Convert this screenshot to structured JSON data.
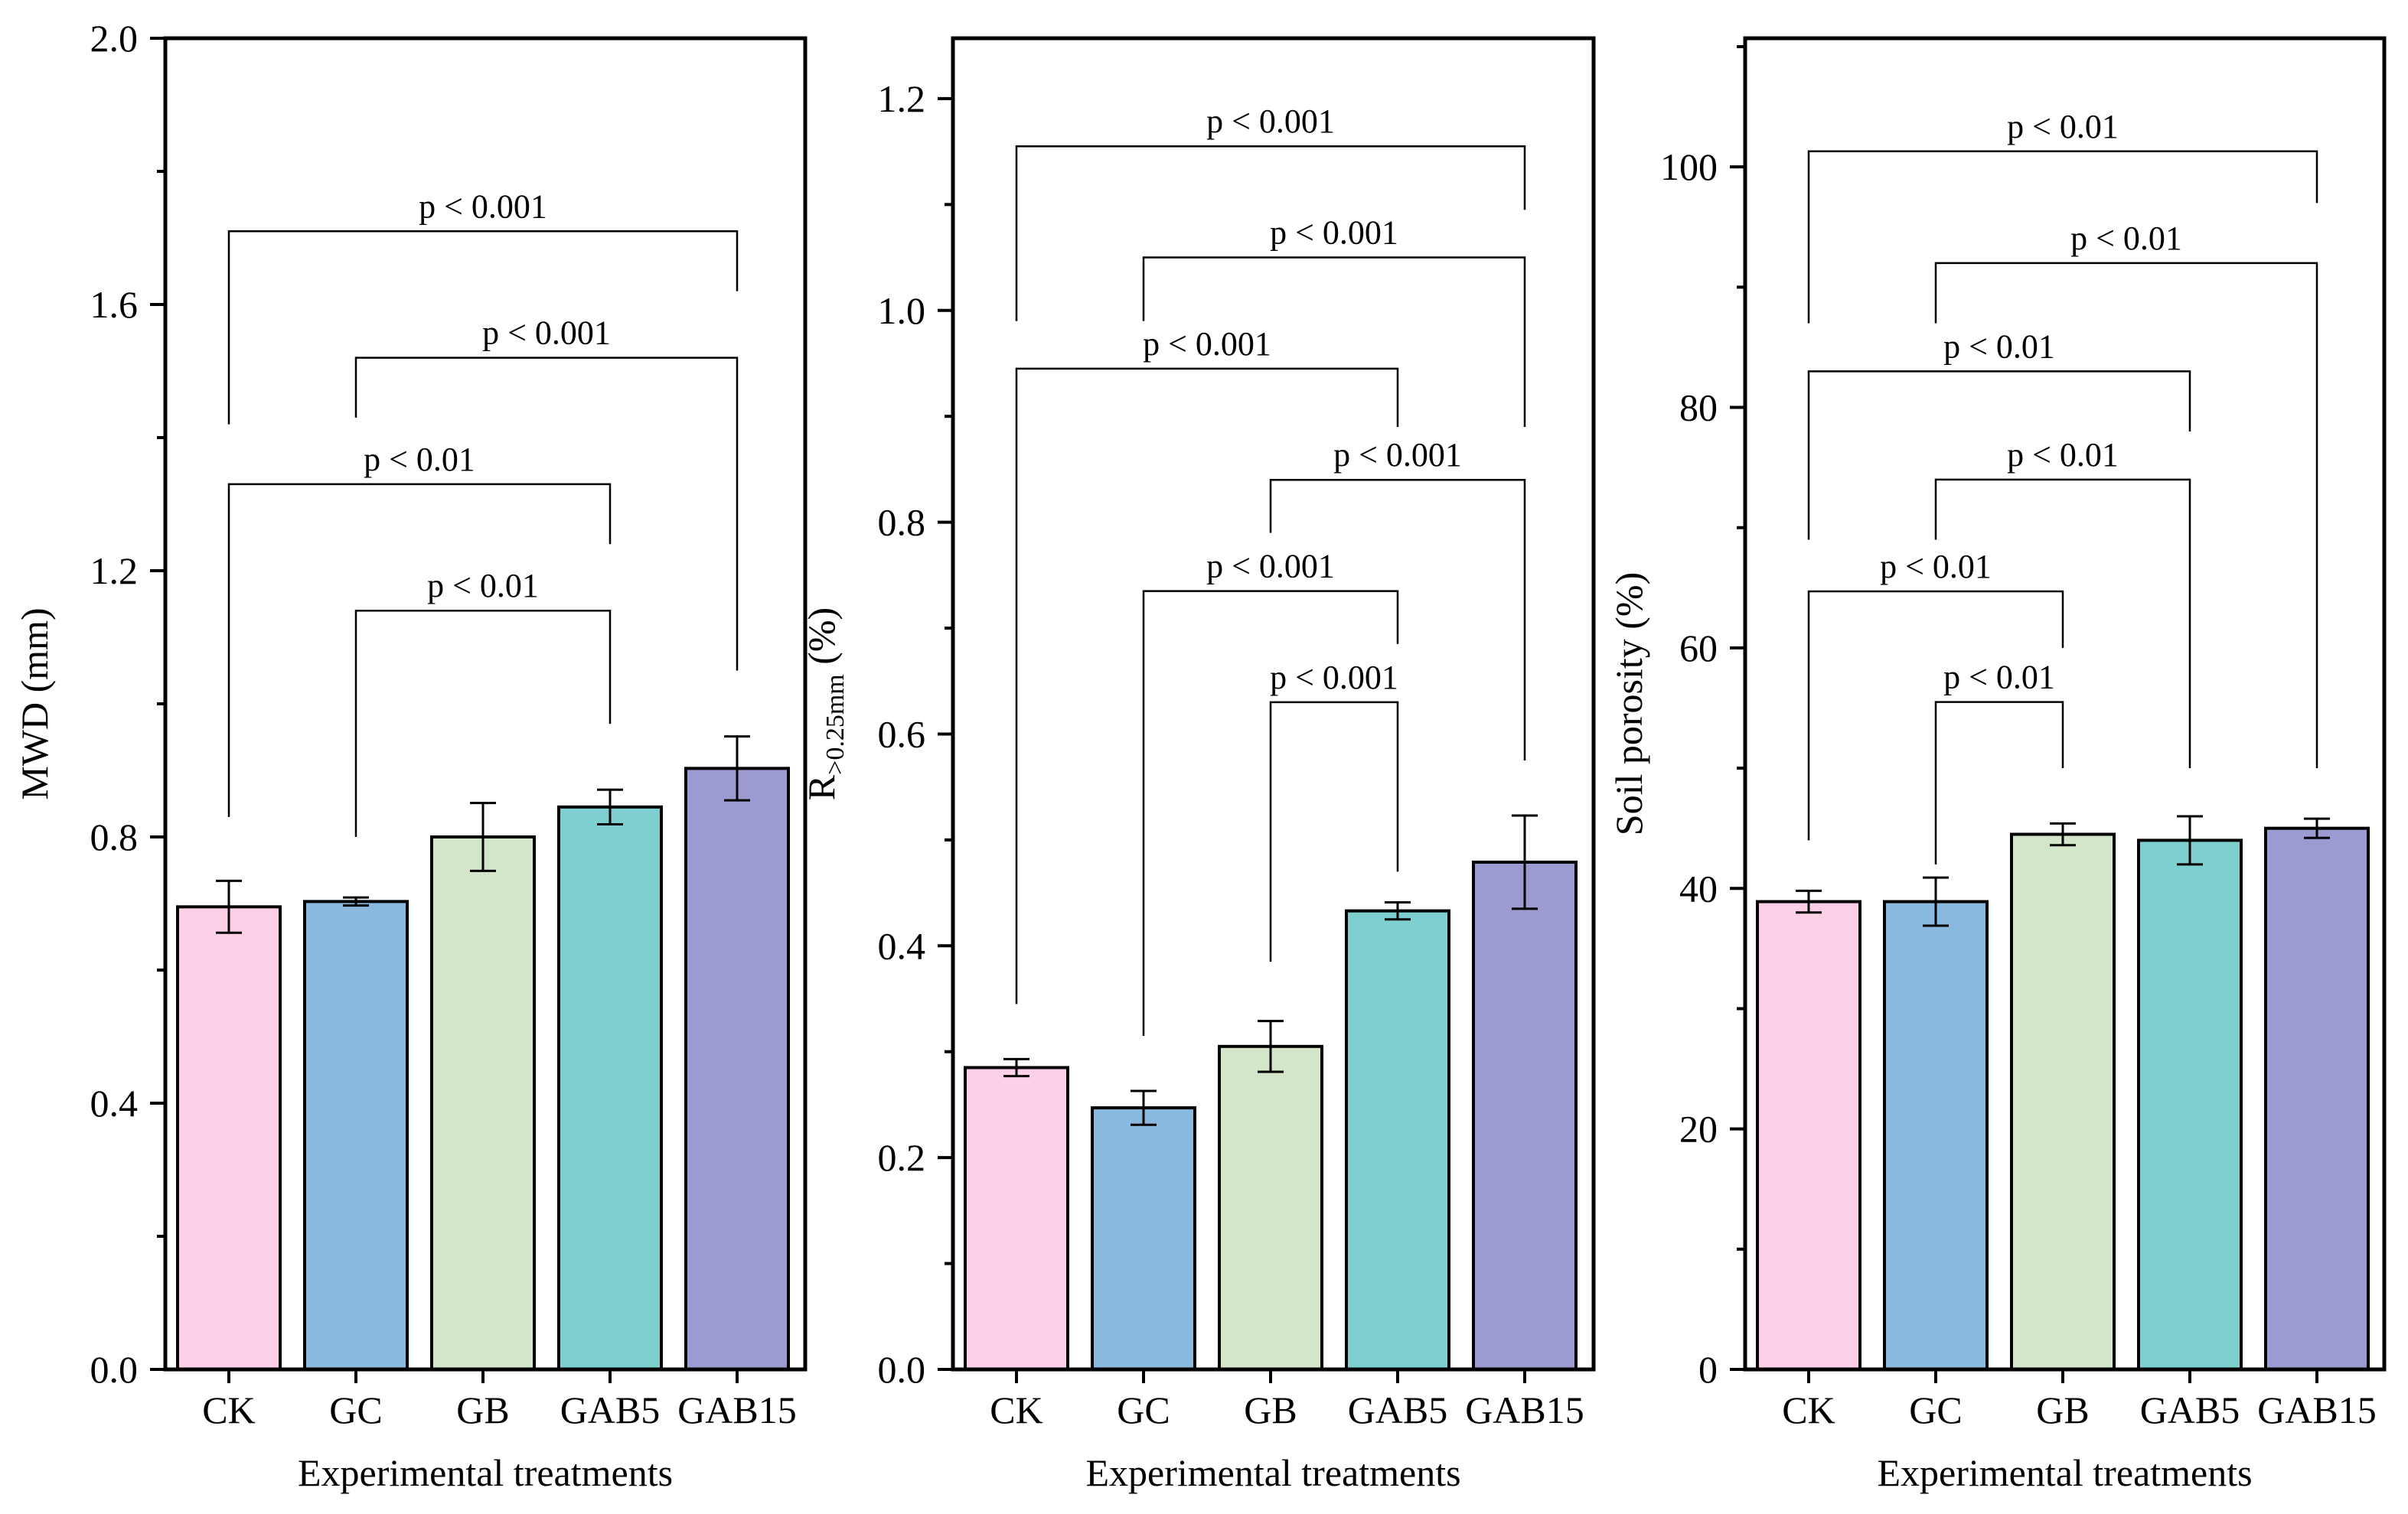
{
  "chart_data": [
    {
      "type": "bar",
      "title": "",
      "xlabel": "Experimental treatments",
      "ylabel": "MWD (mm)",
      "ylabel_parts": {
        "main": "MWD (mm)"
      },
      "categories": [
        "CK",
        "GC",
        "GB",
        "GAB5",
        "GAB15"
      ],
      "values": [
        0.695,
        0.703,
        0.8,
        0.845,
        0.903
      ],
      "errors": [
        0.039,
        0.006,
        0.051,
        0.026,
        0.048
      ],
      "colors": [
        "#FDD0E8",
        "#8AB9E0",
        "#D3E6CA",
        "#7ECFCF",
        "#9B9BD2"
      ],
      "ylim": [
        0,
        2.0
      ],
      "yticks": [
        0.0,
        0.4,
        0.8,
        1.2,
        1.6,
        2.0
      ],
      "ytick_labels": [
        "0.0",
        "0.4",
        "0.8",
        "1.2",
        "1.6",
        "2.0"
      ],
      "minor_step": 0.2,
      "significance": [
        {
          "from": 0,
          "to": 4,
          "level": 1.71,
          "drop_from": 1.42,
          "drop_to": 1.62,
          "label": "p < 0.001"
        },
        {
          "from": 1,
          "to": 4,
          "level": 1.52,
          "drop_from": 1.43,
          "drop_to": 1.05,
          "label": "p < 0.001"
        },
        {
          "from": 0,
          "to": 3,
          "level": 1.33,
          "drop_from": 0.83,
          "drop_to": 1.24,
          "label": "p < 0.01"
        },
        {
          "from": 1,
          "to": 3,
          "level": 1.14,
          "drop_from": 0.8,
          "drop_to": 0.97,
          "label": "p < 0.01"
        }
      ]
    },
    {
      "type": "bar",
      "title": "",
      "xlabel": "Experimental treatments",
      "ylabel": "R>0.25mm (%)",
      "ylabel_parts": {
        "main": "R",
        "sub": ">0.25mm",
        "suffix": " (%)"
      },
      "categories": [
        "CK",
        "GC",
        "GB",
        "GAB5",
        "GAB15"
      ],
      "values": [
        0.285,
        0.247,
        0.305,
        0.433,
        0.479
      ],
      "errors": [
        0.008,
        0.016,
        0.024,
        0.008,
        0.044
      ],
      "colors": [
        "#FDD0E8",
        "#8AB9E0",
        "#D3E6CA",
        "#7ECFCF",
        "#9B9BD2"
      ],
      "ylim": [
        0,
        1.257
      ],
      "yticks": [
        0.0,
        0.2,
        0.4,
        0.6,
        0.8,
        1.0,
        1.2
      ],
      "ytick_labels": [
        "0.0",
        "0.2",
        "0.4",
        "0.6",
        "0.8",
        "1.0",
        "1.2"
      ],
      "minor_step": 0.1,
      "significance": [
        {
          "from": 0,
          "to": 4,
          "level": 1.155,
          "drop_from": 0.99,
          "drop_to": 1.095,
          "label": "p < 0.001"
        },
        {
          "from": 1,
          "to": 4,
          "level": 1.05,
          "drop_from": 0.99,
          "drop_to": 0.89,
          "label": "p < 0.001"
        },
        {
          "from": 0,
          "to": 3,
          "level": 0.945,
          "drop_from": 0.345,
          "drop_to": 0.89,
          "label": "p < 0.001"
        },
        {
          "from": 2,
          "to": 4,
          "level": 0.84,
          "drop_from": 0.79,
          "drop_to": 0.575,
          "label": "p < 0.001"
        },
        {
          "from": 1,
          "to": 3,
          "level": 0.735,
          "drop_from": 0.315,
          "drop_to": 0.685,
          "label": "p < 0.001"
        },
        {
          "from": 2,
          "to": 3,
          "level": 0.63,
          "drop_from": 0.385,
          "drop_to": 0.47,
          "label": "p < 0.001"
        }
      ]
    },
    {
      "type": "bar",
      "title": "",
      "xlabel": "Experimental treatments",
      "ylabel": "Soil porosity (%)",
      "ylabel_parts": {
        "main": "Soil porosity (%)"
      },
      "categories": [
        "CK",
        "GC",
        "GB",
        "GAB5",
        "GAB15"
      ],
      "values": [
        38.9,
        38.9,
        44.5,
        44.0,
        45.0
      ],
      "errors": [
        0.9,
        2.0,
        0.9,
        2.0,
        0.8
      ],
      "colors": [
        "#FDD0E8",
        "#8AB9E0",
        "#D3E6CA",
        "#7ECFCF",
        "#9B9BD2"
      ],
      "ylim": [
        0,
        110.7
      ],
      "yticks": [
        0,
        20,
        40,
        60,
        80,
        100
      ],
      "ytick_labels": [
        "0",
        "20",
        "40",
        "60",
        "80",
        "100"
      ],
      "minor_step": 10,
      "significance": [
        {
          "from": 0,
          "to": 4,
          "level": 101.3,
          "drop_from": 87.0,
          "drop_to": 97.0,
          "label": "p < 0.01"
        },
        {
          "from": 1,
          "to": 4,
          "level": 92.0,
          "drop_from": 87.0,
          "drop_to": 50.0,
          "label": "p < 0.01"
        },
        {
          "from": 0,
          "to": 3,
          "level": 83.0,
          "drop_from": 69.0,
          "drop_to": 78.0,
          "label": "p < 0.01"
        },
        {
          "from": 1,
          "to": 3,
          "level": 74.0,
          "drop_from": 69.0,
          "drop_to": 50.0,
          "label": "p < 0.01"
        },
        {
          "from": 0,
          "to": 2,
          "level": 64.7,
          "drop_from": 44.0,
          "drop_to": 60.0,
          "label": "p < 0.01"
        },
        {
          "from": 1,
          "to": 2,
          "level": 55.5,
          "drop_from": 42.0,
          "drop_to": 50.0,
          "label": "p < 0.01"
        }
      ]
    }
  ]
}
